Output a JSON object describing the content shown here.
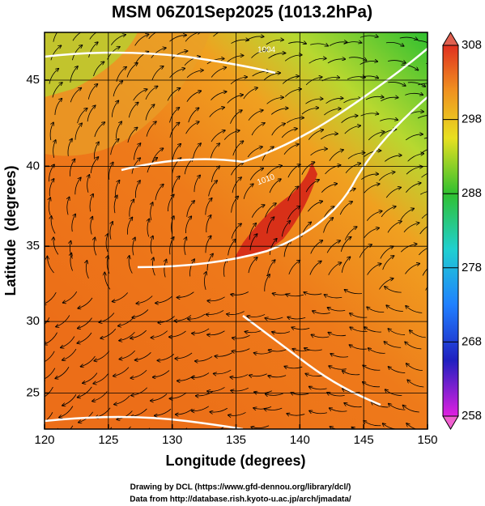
{
  "title": "MSM 06Z01Sep2025 (1013.2hPa)",
  "map": {
    "xlabel": "Longitude (degrees)",
    "ylabel": "Latitude  (degrees)",
    "xlim": [
      120,
      150
    ],
    "ylim": [
      22.4,
      47.6
    ],
    "projection": "mercator",
    "xticks": [
      120,
      125,
      130,
      135,
      140,
      145,
      150
    ],
    "yticks": [
      25,
      30,
      35,
      40,
      45
    ],
    "grid": true,
    "contour_labels": [
      "1004",
      "1010"
    ]
  },
  "colorbar": {
    "range": [
      258,
      308
    ],
    "ticks": [
      258,
      268,
      278,
      288,
      298,
      308
    ]
  },
  "credits": [
    "Drawing by DCL (https://www.gfd-dennou.org/library/dcl/)",
    "Data from http://database.rish.kyoto-u.ac.jp/arch/jmadata/"
  ]
}
